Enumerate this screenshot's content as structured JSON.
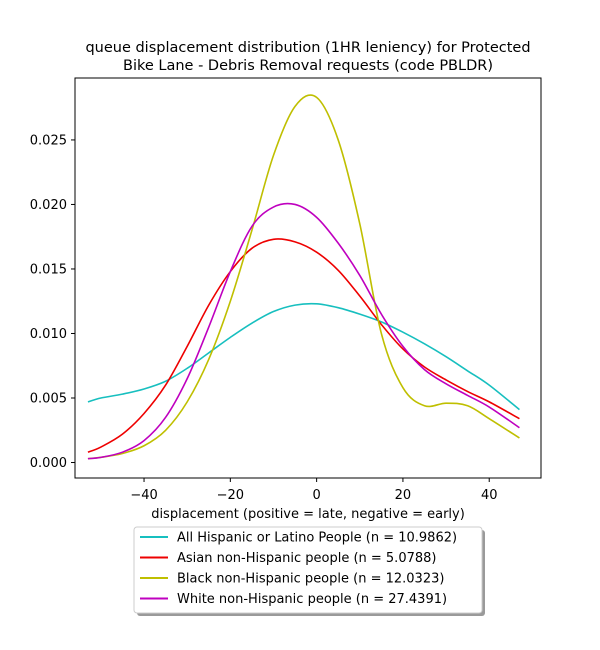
{
  "chart_data": {
    "type": "line",
    "title_line1": "queue displacement distribution (1HR leniency) for Protected",
    "title_line2": "Bike Lane - Debris Removal  requests (code PBLDR)",
    "xlabel": "displacement (positive = late, negative = early)",
    "ylabel": "",
    "xlim": [
      -56,
      52
    ],
    "ylim": [
      -0.0012,
      0.0298
    ],
    "xticks": [
      -40,
      -20,
      0,
      20,
      40
    ],
    "xtick_labels": [
      "−40",
      "−20",
      "0",
      "20",
      "40"
    ],
    "yticks": [
      0.0,
      0.005,
      0.01,
      0.015,
      0.02,
      0.025
    ],
    "ytick_labels": [
      "0.000",
      "0.005",
      "0.010",
      "0.015",
      "0.020",
      "0.025"
    ],
    "grid": false,
    "legend_position": "below",
    "x": [
      -53,
      -50,
      -45,
      -40,
      -35,
      -30,
      -25,
      -20,
      -15,
      -10,
      -5,
      0,
      5,
      10,
      15,
      20,
      25,
      30,
      35,
      40,
      47
    ],
    "series": [
      {
        "name": "All Hispanic or Latino People (n = 10.9862)",
        "color": "#17bfbf",
        "values": [
          0.0047,
          0.005,
          0.0053,
          0.0057,
          0.0063,
          0.0073,
          0.0085,
          0.0097,
          0.0108,
          0.0117,
          0.0122,
          0.0123,
          0.012,
          0.0115,
          0.0109,
          0.0101,
          0.0092,
          0.0082,
          0.0071,
          0.006,
          0.0041
        ]
      },
      {
        "name": "Asian non-Hispanic people (n = 5.0788)",
        "color": "#ee0000",
        "values": [
          0.0008,
          0.0012,
          0.0022,
          0.0038,
          0.006,
          0.009,
          0.0122,
          0.0148,
          0.0166,
          0.0173,
          0.0171,
          0.0163,
          0.0149,
          0.0129,
          0.0107,
          0.0088,
          0.0074,
          0.0064,
          0.0055,
          0.0047,
          0.0034
        ]
      },
      {
        "name": "Black non-Hispanic people (n = 12.0323)",
        "color": "#bfbf00",
        "values": [
          0.0003,
          0.0004,
          0.0007,
          0.0013,
          0.0025,
          0.0047,
          0.008,
          0.0125,
          0.018,
          0.0238,
          0.0276,
          0.0283,
          0.025,
          0.0185,
          0.01,
          0.0058,
          0.0044,
          0.0046,
          0.0044,
          0.0034,
          0.0019
        ]
      },
      {
        "name": "White non-Hispanic people (n = 27.4391)",
        "color": "#bf00bf",
        "values": [
          0.0003,
          0.0004,
          0.0008,
          0.0017,
          0.0035,
          0.0065,
          0.0105,
          0.0148,
          0.0183,
          0.0198,
          0.02,
          0.019,
          0.017,
          0.0145,
          0.0115,
          0.009,
          0.0072,
          0.0061,
          0.0052,
          0.0043,
          0.0027
        ]
      }
    ]
  }
}
